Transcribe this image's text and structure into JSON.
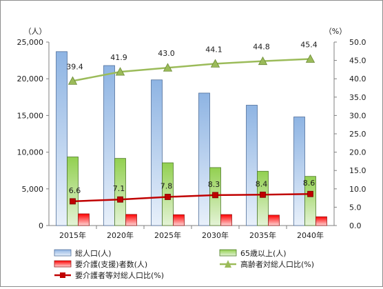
{
  "chart_data": {
    "type": "bar",
    "categories": [
      "2015年",
      "2020年",
      "2025年",
      "2030年",
      "2035年",
      "2040年"
    ],
    "left_axis": {
      "unit_label": "（人）",
      "ylim": [
        0,
        25000
      ],
      "ticks": [
        "0",
        "5,000",
        "10,000",
        "15,000",
        "20,000",
        "25,000"
      ]
    },
    "right_axis": {
      "unit_label": "（%）",
      "ylim": [
        0,
        50
      ],
      "ticks": [
        "0.0",
        "5.0",
        "10.0",
        "15.0",
        "20.0",
        "25.0",
        "30.0",
        "35.0",
        "40.0",
        "45.0",
        "50.0"
      ]
    },
    "series": [
      {
        "name": "総人口(人)",
        "kind": "bar",
        "axis": "left",
        "color": "#8eb4e3",
        "values": [
          23700,
          21800,
          19850,
          18050,
          16400,
          14800
        ]
      },
      {
        "name": "65歳以上(人)",
        "kind": "bar",
        "axis": "left",
        "color": "#92d050",
        "values": [
          9350,
          9150,
          8550,
          7900,
          7400,
          6700
        ]
      },
      {
        "name": "要介護(支援)者数(人)",
        "kind": "bar",
        "axis": "left",
        "color": "#ff0000",
        "values": [
          1600,
          1520,
          1480,
          1500,
          1420,
          1200
        ]
      },
      {
        "name": "高齢者対総人口比(%)",
        "kind": "line",
        "axis": "right",
        "color": "#9bbb59",
        "marker": "triangle",
        "values": [
          39.4,
          41.9,
          43.0,
          44.1,
          44.8,
          45.4
        ],
        "labels": [
          "39.4",
          "41.9",
          "43.0",
          "44.1",
          "44.8",
          "45.4"
        ]
      },
      {
        "name": "要介護者等対総人口比(%)",
        "kind": "line",
        "axis": "right",
        "color": "#c00000",
        "marker": "square",
        "values": [
          6.6,
          7.1,
          7.8,
          8.3,
          8.4,
          8.6
        ],
        "labels": [
          "6.6",
          "7.1",
          "7.8",
          "8.3",
          "8.4",
          "8.6"
        ]
      }
    ],
    "grid": false,
    "legend_position": "bottom"
  }
}
